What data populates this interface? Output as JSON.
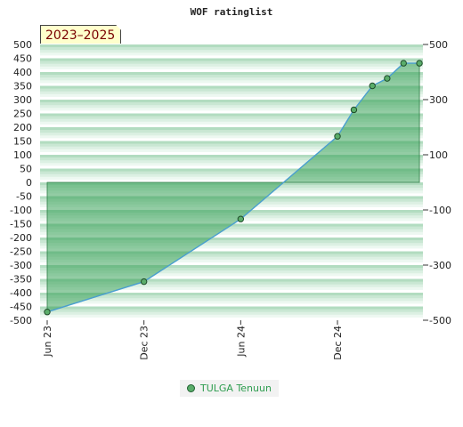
{
  "chart_data": {
    "type": "area",
    "title": "WOF ratinglist",
    "badge": "2023–2025",
    "ylim": [
      -500,
      500
    ],
    "left_ticks": [
      500,
      450,
      400,
      350,
      300,
      250,
      200,
      150,
      100,
      50,
      0,
      -50,
      -100,
      -150,
      -200,
      -250,
      -300,
      -350,
      -400,
      -450,
      -500
    ],
    "right_ticks": [
      500,
      300,
      100,
      -100,
      -300,
      -500
    ],
    "x_ticks": [
      {
        "label": "Jun 23",
        "date": "2023-06-01"
      },
      {
        "label": "Dec 23",
        "date": "2023-12-01"
      },
      {
        "label": "Jun 24",
        "date": "2024-06-01"
      },
      {
        "label": "Dec 24",
        "date": "2024-12-01"
      }
    ],
    "xlim": [
      "2023-06-01",
      "2025-05-15"
    ],
    "grid": true,
    "legend_position": "bottom-center",
    "series": [
      {
        "name": "TULGA Tenuun",
        "color": "#5aad6a",
        "points": [
          {
            "x": "2023-06-01",
            "y": -470
          },
          {
            "x": "2023-12-01",
            "y": -360
          },
          {
            "x": "2024-06-01",
            "y": -133
          },
          {
            "x": "2024-12-01",
            "y": 167
          },
          {
            "x": "2025-01-01",
            "y": 263
          },
          {
            "x": "2025-02-05",
            "y": 350
          },
          {
            "x": "2025-03-05",
            "y": 377
          },
          {
            "x": "2025-04-05",
            "y": 432
          },
          {
            "x": "2025-05-05",
            "y": 432
          }
        ]
      }
    ]
  }
}
